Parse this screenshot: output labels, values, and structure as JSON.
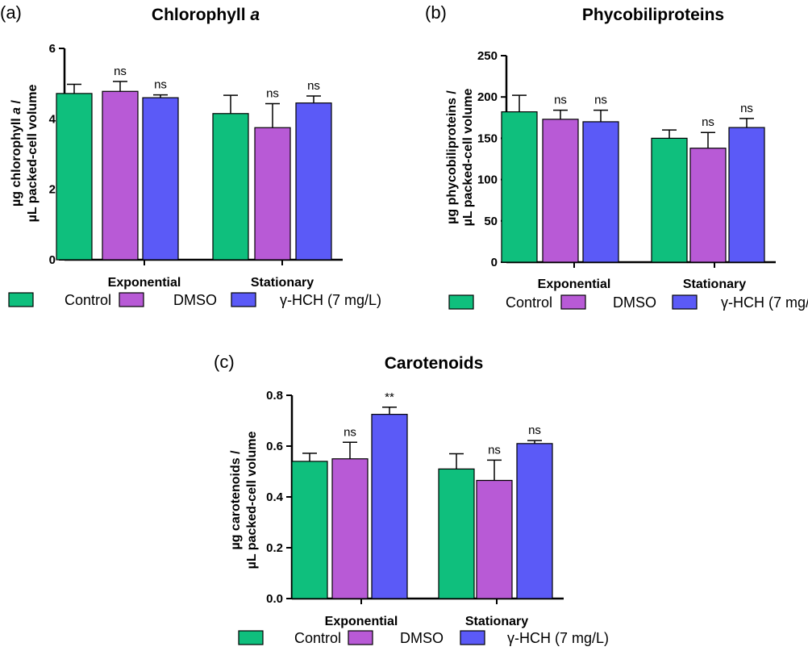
{
  "legend": {
    "items": [
      {
        "label": "Control",
        "color": "#0fbf7d"
      },
      {
        "label": "DMSO",
        "color": "#b85ad6"
      },
      {
        "label": "γ-HCH (7 mg/L)",
        "color": "#5b5af7"
      }
    ]
  },
  "chart_data": [
    {
      "panel": "(a)",
      "type": "bar",
      "title_parts": [
        "Chlorophyll ",
        "a"
      ],
      "ylabel_lines": [
        [
          "µg chlorophyll ",
          "a",
          " /"
        ],
        [
          "µL packed-cell volume"
        ]
      ],
      "categories": [
        "Exponential",
        "Stationary"
      ],
      "ylim": [
        0,
        6
      ],
      "yticks": [
        "0",
        "2",
        "4",
        "6"
      ],
      "series": [
        {
          "name": "Control",
          "values": [
            4.72,
            4.15
          ],
          "errors": [
            0.26,
            0.52
          ],
          "annotations": [
            "",
            ""
          ]
        },
        {
          "name": "DMSO",
          "values": [
            4.78,
            3.75
          ],
          "errors": [
            0.28,
            0.68
          ],
          "annotations": [
            "ns",
            "ns"
          ]
        },
        {
          "name": "γ-HCH (7 mg/L)",
          "values": [
            4.6,
            4.45
          ],
          "errors": [
            0.08,
            0.2
          ],
          "annotations": [
            "ns",
            "ns"
          ]
        }
      ]
    },
    {
      "panel": "(b)",
      "type": "bar",
      "title_parts": [
        "Phycobiliproteins"
      ],
      "ylabel_lines": [
        [
          "µg phycobiliproteins /"
        ],
        [
          "µL packed-cell volume"
        ]
      ],
      "categories": [
        "Exponential",
        "Stationary"
      ],
      "ylim": [
        0,
        250
      ],
      "yticks": [
        "0",
        "50",
        "100",
        "150",
        "200",
        "250"
      ],
      "series": [
        {
          "name": "Control",
          "values": [
            182,
            150
          ],
          "errors": [
            20,
            10
          ],
          "annotations": [
            "",
            ""
          ]
        },
        {
          "name": "DMSO",
          "values": [
            173,
            138
          ],
          "errors": [
            11,
            19
          ],
          "annotations": [
            "ns",
            "ns"
          ]
        },
        {
          "name": "γ-HCH (7 mg/L)",
          "values": [
            170,
            163
          ],
          "errors": [
            14,
            11
          ],
          "annotations": [
            "ns",
            "ns"
          ]
        }
      ]
    },
    {
      "panel": "(c)",
      "type": "bar",
      "title_parts": [
        "Carotenoids"
      ],
      "ylabel_lines": [
        [
          "µg carotenoids /"
        ],
        [
          "µL packed-cell volume"
        ]
      ],
      "categories": [
        "Exponential",
        "Stationary"
      ],
      "ylim": [
        0,
        0.8
      ],
      "yticks": [
        "0.0",
        "0.2",
        "0.4",
        "0.6",
        "0.8"
      ],
      "series": [
        {
          "name": "Control",
          "values": [
            0.54,
            0.51
          ],
          "errors": [
            0.032,
            0.06
          ],
          "annotations": [
            "",
            ""
          ]
        },
        {
          "name": "DMSO",
          "values": [
            0.55,
            0.465
          ],
          "errors": [
            0.065,
            0.08
          ],
          "annotations": [
            "ns",
            "ns"
          ]
        },
        {
          "name": "γ-HCH (7 mg/L)",
          "values": [
            0.725,
            0.61
          ],
          "errors": [
            0.028,
            0.012
          ],
          "annotations": [
            "**",
            "ns"
          ]
        }
      ]
    }
  ]
}
